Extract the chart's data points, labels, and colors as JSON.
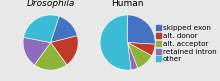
{
  "drosophila_values": [
    16,
    19,
    20,
    18,
    27
  ],
  "human_values": [
    26,
    7,
    11,
    4,
    52
  ],
  "colors": [
    "#4472C4",
    "#C0392B",
    "#8DB33A",
    "#8E6BBF",
    "#3BBCD4"
  ],
  "labels": [
    "skipped exon",
    "alt. donor",
    "alt. acceptor",
    "retained intron",
    "other"
  ],
  "title_left": "Drosophila",
  "title_right": "Human",
  "title_fontsize": 6.5,
  "legend_fontsize": 5.2,
  "bg_color": "#E8E8E8"
}
